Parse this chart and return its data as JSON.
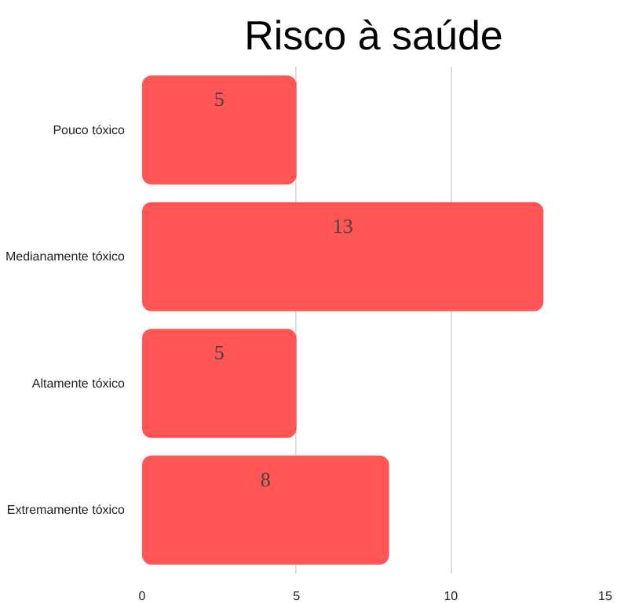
{
  "chart_data": {
    "type": "bar",
    "orientation": "horizontal",
    "title": "Risco à saúde",
    "categories": [
      "Pouco tóxico",
      "Medianamente tóxico",
      "Altamente tóxico",
      "Extremamente tóxico"
    ],
    "values": [
      5,
      13,
      5,
      8
    ],
    "color": "#ff5555",
    "xlim": [
      0,
      15
    ],
    "xticks": [
      0,
      5,
      10,
      15
    ],
    "grid": "x",
    "data_labels": true
  }
}
